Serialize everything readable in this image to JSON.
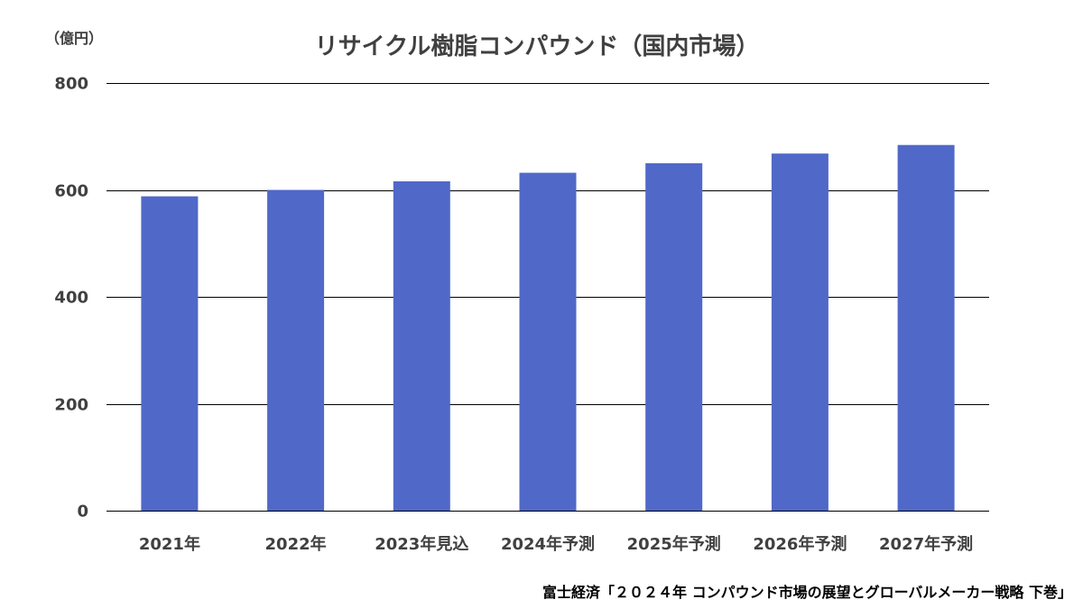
{
  "chart_data": {
    "type": "bar",
    "title": "リサイクル樹脂コンパウンド（国内市場）",
    "unit_label": "（億円）",
    "categories": [
      "2021年",
      "2022年",
      "2023年見込",
      "2024年予測",
      "2025年予測",
      "2026年予測",
      "2027年予測"
    ],
    "values": [
      588,
      600,
      616,
      632,
      650,
      668,
      684
    ],
    "ylim": [
      0,
      800
    ],
    "yticks": [
      "0",
      "200",
      "400",
      "600",
      "800"
    ],
    "ytick_values": [
      0,
      200,
      400,
      600,
      800
    ],
    "grid": true,
    "bar_color": "#5068c8",
    "source": "富士経済「２０２４年 コンパウンド市場の展望とグローバルメーカー戦略 下巻」"
  }
}
